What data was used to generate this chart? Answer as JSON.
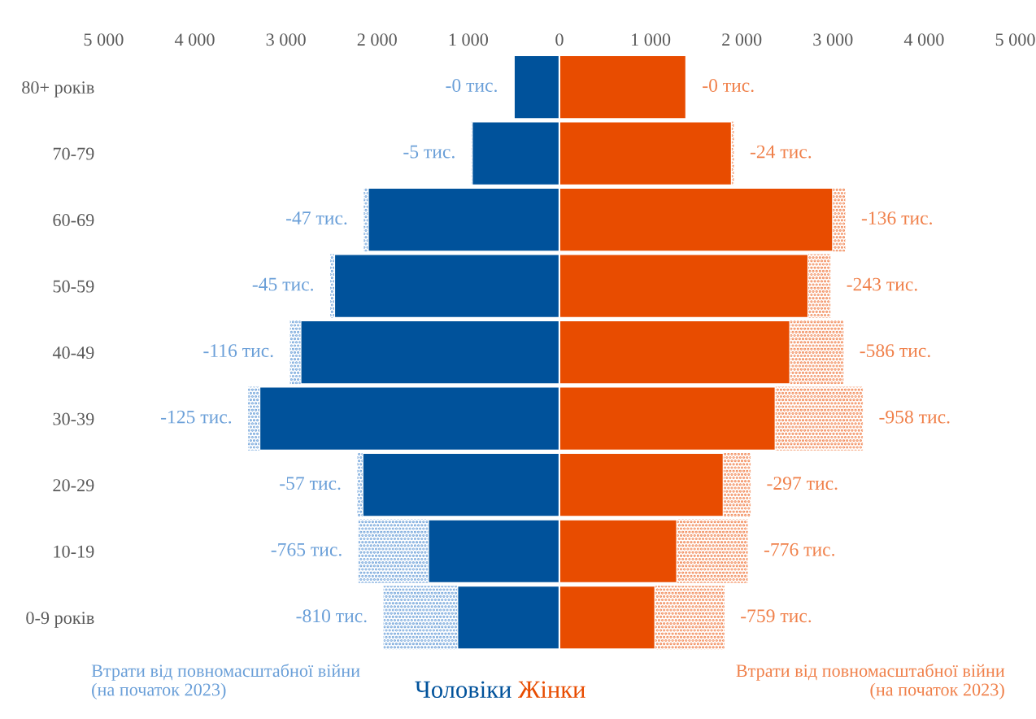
{
  "chart_data": {
    "type": "bar",
    "orientation": "horizontal",
    "stacked": true,
    "legend": "bottom",
    "grid": false,
    "categories": [
      "80+ років",
      "70-79",
      "60-69",
      "50-59",
      "40-49",
      "30-39",
      "20-29",
      "10-19",
      "0-9 років"
    ],
    "xlim": [
      -5000,
      5000
    ],
    "xticks": [
      {
        "value": -5000,
        "label": "5 000"
      },
      {
        "value": -4000,
        "label": "4 000"
      },
      {
        "value": -3000,
        "label": "3 000"
      },
      {
        "value": -2000,
        "label": "2 000"
      },
      {
        "value": -1000,
        "label": "1 000"
      },
      0,
      {
        "value": 1000,
        "label": "1 000"
      },
      {
        "value": 2000,
        "label": "2 000"
      },
      {
        "value": 3000,
        "label": "3 000"
      },
      {
        "value": 4000,
        "label": "4 000"
      },
      {
        "value": 5000,
        "label": "5 000"
      }
    ],
    "series": [
      {
        "name": "Чоловіки",
        "color": "#00529b",
        "values": [
          -500,
          -960,
          -2100,
          -2470,
          -2840,
          -3290,
          -2160,
          -1440,
          -1120
        ]
      },
      {
        "name": "Втрати від повномасштабної війни\n(на початок 2023)",
        "color": "#6a9fd8",
        "line_style": "dotted",
        "values": [
          0,
          -5,
          -47,
          -45,
          -116,
          -125,
          -57,
          -765,
          -810
        ],
        "value_labels": [
          null,
          "-5 тис.",
          "-47 тис.",
          "-45 тис.",
          "-116 тис.",
          "-125 тис.",
          "-57 тис.",
          "-765 тис.",
          "-810 тис."
        ]
      },
      {
        "name": "Жінки",
        "color": "#e84c00",
        "values": [
          1390,
          1890,
          3000,
          2730,
          2530,
          2370,
          1800,
          1290,
          1050
        ]
      },
      {
        "name": "Втрати від повномасштабної війни\n(на початок 2023)",
        "color": "#f0804a",
        "line_style": "dotted",
        "values": [
          0,
          24,
          136,
          243,
          586,
          958,
          297,
          776,
          759
        ]
      }
    ],
    "annotations": [
      {
        "text": "-0 тис.",
        "x": -500,
        "y": "80+ років"
      },
      {
        "text": "-0 тис.",
        "x": 1390,
        "y": "80+ років"
      },
      {
        "text": "-24 тис.",
        "x": 1914,
        "y": "70-79"
      },
      {
        "text": "-136 тис.",
        "x": 3136,
        "y": "60-69"
      },
      {
        "text": "-243 тис.",
        "x": 2973,
        "y": "50-59"
      },
      {
        "text": "-586 тис.",
        "x": 3116,
        "y": "40-49"
      },
      {
        "text": "-958 тис.",
        "x": 3328,
        "y": "30-39"
      },
      {
        "text": "-297 тис.",
        "x": 2097,
        "y": "20-29"
      },
      {
        "text": "-776 тис.",
        "x": 2066,
        "y": "10-19"
      },
      {
        "text": "-759 тис.",
        "x": 1809,
        "y": "0-9 років"
      }
    ]
  }
}
